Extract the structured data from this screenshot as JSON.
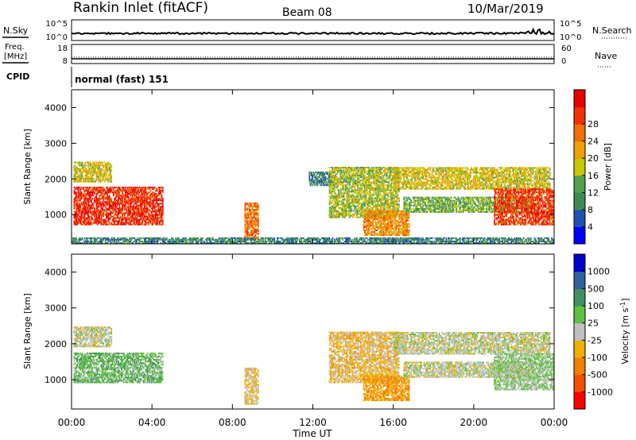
{
  "header": {
    "title": "Rankin Inlet (fitACF)",
    "beam": "Beam 08",
    "date": "10/Mar/2019"
  },
  "panels": {
    "nsky": {
      "label": "N.Sky",
      "right_label": "N.Search",
      "left_ticks": [
        "10^5",
        "10^0"
      ],
      "right_ticks": [
        "10^5",
        "10^0"
      ]
    },
    "freq": {
      "label_line1": "Freq.",
      "label_line2": "[MHz]",
      "right_label": "Nave",
      "left_ticks": [
        "18",
        "8"
      ],
      "right_ticks": [
        "60",
        "0"
      ]
    },
    "cpid": {
      "label": "CPID",
      "text": "normal (fast) 151"
    }
  },
  "colors": {
    "power": [
      "#0000ff",
      "#2050b0",
      "#3d8a50",
      "#50a050",
      "#c8c800",
      "#f0a000",
      "#f07000",
      "#f03000",
      "#e80000"
    ],
    "velocity": [
      "#ff0000",
      "#f05000",
      "#f08000",
      "#f0b000",
      "#c0c0c0",
      "#60c040",
      "#409060",
      "#3060a0",
      "#0000cc"
    ]
  },
  "chart_data": [
    {
      "type": "heatmap",
      "title": "",
      "xlabel": "",
      "ylabel": "Slant Range [km]",
      "xlim": [
        0,
        24
      ],
      "ylim": [
        180,
        4500
      ],
      "x_ticks": [
        "00:00",
        "04:00",
        "08:00",
        "12:00",
        "16:00",
        "20:00",
        "00:00"
      ],
      "y_ticks": [
        1000,
        2000,
        3000,
        4000
      ],
      "colorbar": {
        "label": "Power [dB]",
        "ticks": [
          "4",
          "8",
          "12",
          "16",
          "20",
          "24",
          "28"
        ],
        "range": [
          0,
          30
        ]
      },
      "regions": [
        {
          "t0": 0.1,
          "t1": 4.5,
          "r0": 700,
          "r1": 1750,
          "v": 26
        },
        {
          "t0": 0.1,
          "t1": 2.0,
          "r0": 1900,
          "r1": 2450,
          "v": 16
        },
        {
          "t0": 8.6,
          "t1": 9.3,
          "r0": 300,
          "r1": 1300,
          "v": 22
        },
        {
          "t0": 11.8,
          "t1": 13.0,
          "r0": 1800,
          "r1": 2200,
          "v": 8
        },
        {
          "t0": 12.8,
          "t1": 16.3,
          "r0": 900,
          "r1": 2300,
          "v": 14
        },
        {
          "t0": 14.5,
          "t1": 16.8,
          "r0": 400,
          "r1": 1100,
          "v": 20
        },
        {
          "t0": 16.0,
          "t1": 23.8,
          "r0": 1700,
          "r1": 2300,
          "v": 16
        },
        {
          "t0": 16.5,
          "t1": 23.0,
          "r0": 1050,
          "r1": 1500,
          "v": 12
        },
        {
          "t0": 21.0,
          "t1": 24.0,
          "r0": 700,
          "r1": 1700,
          "v": 25
        },
        {
          "t0": 0.0,
          "t1": 24.0,
          "r0": 180,
          "r1": 350,
          "v": 8
        }
      ]
    },
    {
      "type": "heatmap",
      "title": "",
      "xlabel": "Time UT",
      "ylabel": "Slant Range [km]",
      "xlim": [
        0,
        24
      ],
      "ylim": [
        180,
        4500
      ],
      "x_ticks": [
        "00:00",
        "04:00",
        "08:00",
        "12:00",
        "16:00",
        "20:00",
        "00:00"
      ],
      "y_ticks": [
        1000,
        2000,
        3000,
        4000
      ],
      "colorbar": {
        "label": "Velocity [m s^-1]",
        "ticks": [
          "-1000",
          "-500",
          "-100",
          "-25",
          "25",
          "100",
          "500",
          "1000"
        ],
        "range": [
          -1200,
          1200
        ]
      },
      "regions": [
        {
          "t0": 0.1,
          "t1": 4.5,
          "r0": 900,
          "r1": 1750,
          "v": 300
        },
        {
          "t0": 0.1,
          "t1": 2.0,
          "r0": 1900,
          "r1": 2450,
          "v": 0
        },
        {
          "t0": 8.6,
          "t1": 9.3,
          "r0": 300,
          "r1": 1300,
          "v": -150
        },
        {
          "t0": 12.8,
          "t1": 16.3,
          "r0": 900,
          "r1": 2300,
          "v": -200
        },
        {
          "t0": 14.5,
          "t1": 16.8,
          "r0": 400,
          "r1": 1100,
          "v": -400
        },
        {
          "t0": 16.0,
          "t1": 23.8,
          "r0": 1700,
          "r1": 2300,
          "v": 0
        },
        {
          "t0": 16.5,
          "t1": 23.0,
          "r0": 1050,
          "r1": 1500,
          "v": 0
        },
        {
          "t0": 21.0,
          "t1": 24.0,
          "r0": 700,
          "r1": 1700,
          "v": 150
        }
      ]
    }
  ]
}
